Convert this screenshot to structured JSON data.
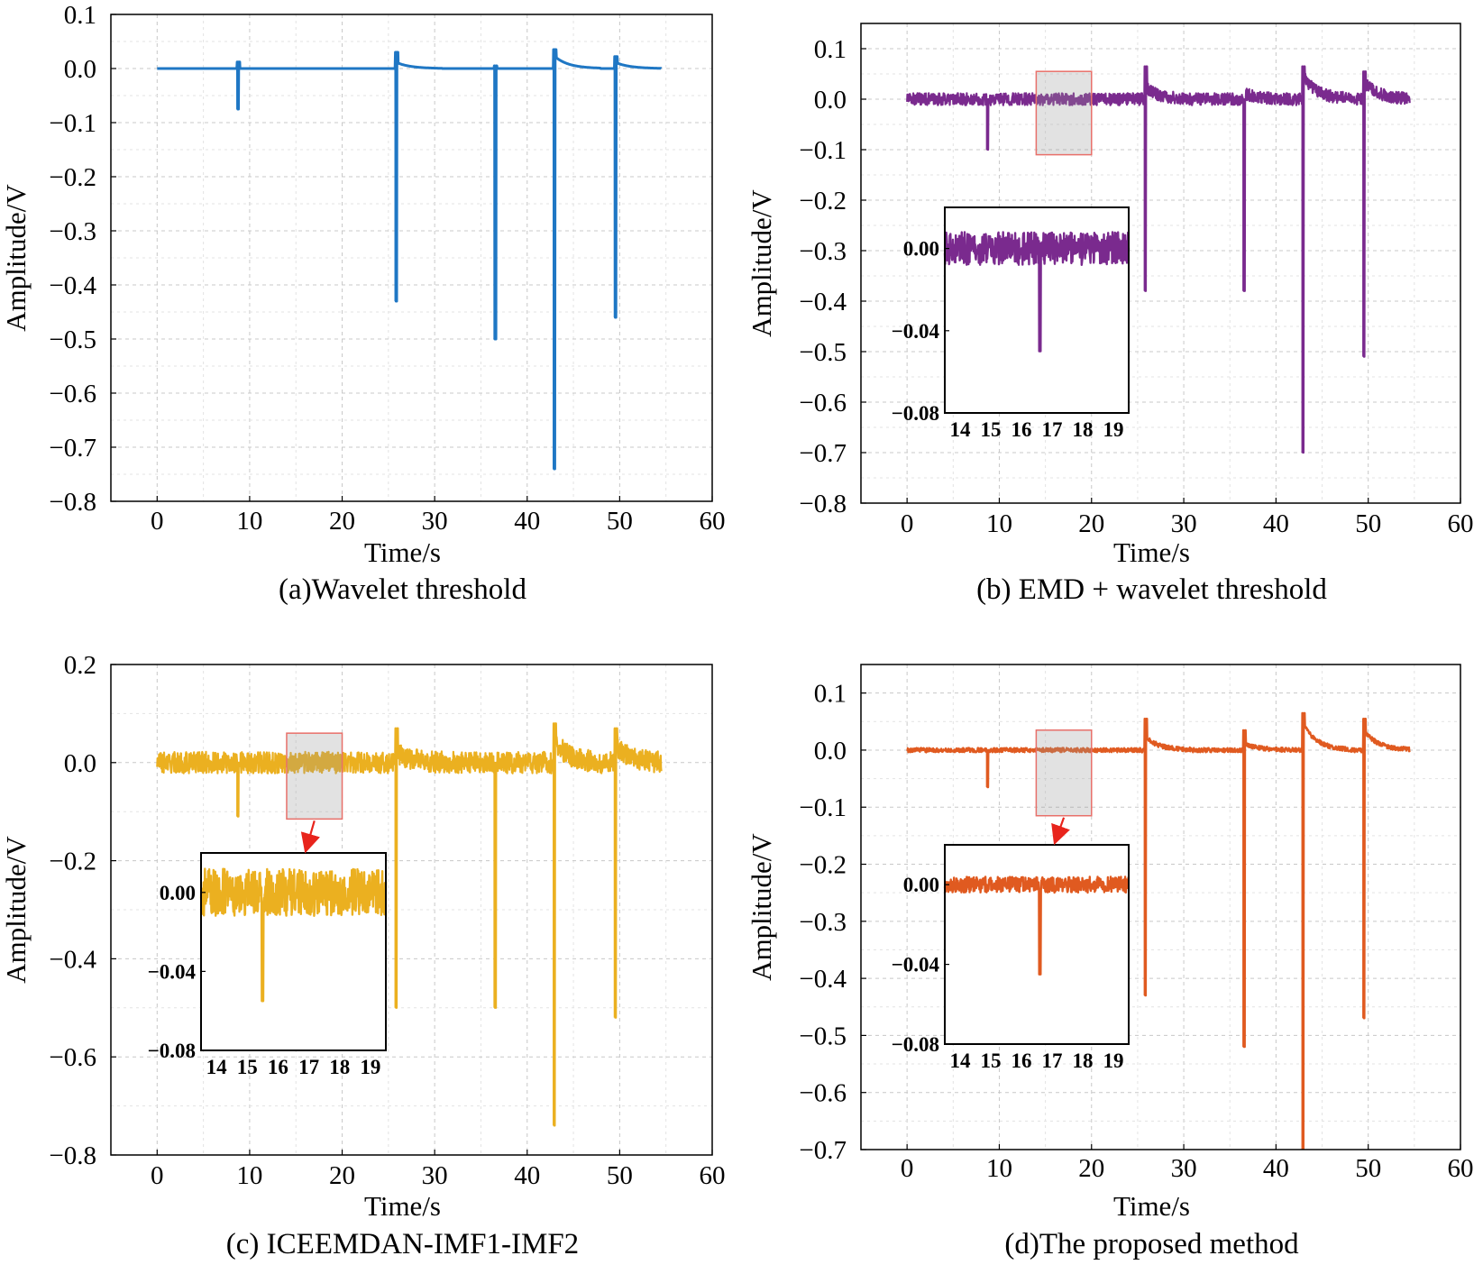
{
  "figure": {
    "panels_count": 4,
    "shared": {
      "xlabel": "Time/s",
      "ylabel": "Amplitude/V"
    }
  },
  "chart_data": [
    {
      "id": "a",
      "type": "line",
      "caption": "(a)Wavelet threshold",
      "xlabel": "Time/s",
      "ylabel": "Amplitude/V",
      "xlim": [
        -5,
        60
      ],
      "ylim": [
        -0.8,
        0.1
      ],
      "xticks": [
        0,
        10,
        20,
        30,
        40,
        50,
        60
      ],
      "xtick_labels": [
        "0",
        "10",
        "20",
        "30",
        "40",
        "50",
        "60"
      ],
      "yticks": [
        0.1,
        0.0,
        -0.1,
        -0.2,
        -0.3,
        -0.4,
        -0.5,
        -0.6,
        -0.7,
        -0.8
      ],
      "ytick_labels": [
        "0.1",
        "0.0",
        "−0.1",
        "−0.2",
        "−0.3",
        "−0.4",
        "−0.5",
        "−0.6",
        "−0.7",
        "−0.8"
      ],
      "grid": true,
      "color": "#1f77c4",
      "signal": {
        "t_start": 0,
        "t_end": 54.5,
        "baseline": 0.0,
        "noise": 0.0,
        "spikes": [
          {
            "t": 8.7,
            "min": -0.075,
            "max": 0.012,
            "recovery": 0.0
          },
          {
            "t": 25.8,
            "min": -0.43,
            "max": 0.03,
            "recovery": 0.01
          },
          {
            "t": 36.5,
            "min": -0.5,
            "max": 0.005,
            "recovery": 0.0
          },
          {
            "t": 42.9,
            "min": -0.74,
            "max": 0.035,
            "recovery": 0.02
          },
          {
            "t": 49.5,
            "min": -0.46,
            "max": 0.022,
            "recovery": 0.01
          }
        ]
      }
    },
    {
      "id": "b",
      "type": "line",
      "caption": "(b) EMD + wavelet threshold",
      "xlabel": "Time/s",
      "ylabel": "Amplitude/V",
      "xlim": [
        -5,
        60
      ],
      "ylim": [
        -0.8,
        0.15
      ],
      "xticks": [
        0,
        10,
        20,
        30,
        40,
        50,
        60
      ],
      "xtick_labels": [
        "0",
        "10",
        "20",
        "30",
        "40",
        "50",
        "60"
      ],
      "yticks": [
        0.1,
        0.0,
        -0.1,
        -0.2,
        -0.3,
        -0.4,
        -0.5,
        -0.6,
        -0.7,
        -0.8
      ],
      "ytick_labels": [
        "0.1",
        "0.0",
        "−0.1",
        "−0.2",
        "−0.3",
        "−0.4",
        "−0.5",
        "−0.6",
        "−0.7",
        "−0.8"
      ],
      "grid": true,
      "color": "#7a2a8e",
      "signal": {
        "t_start": 0,
        "t_end": 54.5,
        "baseline": 0.0,
        "noise": 0.012,
        "spikes": [
          {
            "t": 8.7,
            "min": -0.1,
            "max": 0.0,
            "recovery": 0.0
          },
          {
            "t": 25.8,
            "min": -0.38,
            "max": 0.065,
            "recovery": 0.02
          },
          {
            "t": 36.5,
            "min": -0.38,
            "max": 0.0,
            "recovery": 0.01
          },
          {
            "t": 42.9,
            "min": -0.7,
            "max": 0.065,
            "recovery": 0.04
          },
          {
            "t": 49.5,
            "min": -0.51,
            "max": 0.055,
            "recovery": 0.03
          }
        ]
      },
      "zoom_box": {
        "x_range": [
          14,
          20
        ],
        "y_range": [
          -0.11,
          0.055
        ]
      },
      "inset": {
        "xlim": [
          13.5,
          19.5
        ],
        "ylim": [
          -0.08,
          0.02
        ],
        "xticks": [
          14,
          15,
          16,
          17,
          18,
          19
        ],
        "xtick_labels": [
          "14",
          "15",
          "16",
          "17",
          "18",
          "19"
        ],
        "yticks": [
          0.0,
          -0.04,
          -0.08
        ],
        "ytick_labels": [
          "0.00",
          "−0.04",
          "−0.08"
        ],
        "noise": 0.008,
        "spike": {
          "t": 16.6,
          "min": -0.05
        },
        "arrow": false
      }
    },
    {
      "id": "c",
      "type": "line",
      "caption": "(c) ICEEMDAN-IMF1-IMF2",
      "xlabel": "Time/s",
      "ylabel": "Amplitude/V",
      "xlim": [
        -5,
        60
      ],
      "ylim": [
        -0.8,
        0.2
      ],
      "xticks": [
        0,
        10,
        20,
        30,
        40,
        50,
        60
      ],
      "xtick_labels": [
        "0",
        "10",
        "20",
        "30",
        "40",
        "50",
        "60"
      ],
      "yticks": [
        0.2,
        0.0,
        -0.2,
        -0.4,
        -0.6,
        -0.8
      ],
      "ytick_labels": [
        "0.2",
        "0.0",
        "−0.2",
        "−0.4",
        "−0.6",
        "−0.8"
      ],
      "grid": true,
      "color": "#ebb020",
      "signal": {
        "t_start": 0,
        "t_end": 54.5,
        "baseline": 0.0,
        "noise": 0.022,
        "spikes": [
          {
            "t": 8.7,
            "min": -0.11,
            "max": 0.0,
            "recovery": 0.0
          },
          {
            "t": 25.8,
            "min": -0.5,
            "max": 0.07,
            "recovery": 0.02
          },
          {
            "t": 36.5,
            "min": -0.5,
            "max": 0.0,
            "recovery": 0.0
          },
          {
            "t": 42.9,
            "min": -0.74,
            "max": 0.08,
            "recovery": 0.04
          },
          {
            "t": 49.5,
            "min": -0.52,
            "max": 0.07,
            "recovery": 0.03
          }
        ]
      },
      "zoom_box": {
        "x_range": [
          14,
          20
        ],
        "y_range": [
          -0.115,
          0.06
        ]
      },
      "inset": {
        "xlim": [
          13.5,
          19.5
        ],
        "ylim": [
          -0.08,
          0.02
        ],
        "xticks": [
          14,
          15,
          16,
          17,
          18,
          19
        ],
        "xtick_labels": [
          "14",
          "15",
          "16",
          "17",
          "18",
          "19"
        ],
        "yticks": [
          0.0,
          -0.04,
          -0.08
        ],
        "ytick_labels": [
          "0.00",
          "−0.04",
          "−0.08"
        ],
        "noise": 0.012,
        "spike": {
          "t": 15.5,
          "min": -0.055
        },
        "arrow": true
      }
    },
    {
      "id": "d",
      "type": "line",
      "caption": "(d)The proposed method",
      "xlabel": "Time/s",
      "ylabel": "Amplitude/V",
      "xlim": [
        -5,
        60
      ],
      "ylim": [
        -0.7,
        0.15
      ],
      "xticks": [
        0,
        10,
        20,
        30,
        40,
        50,
        60
      ],
      "xtick_labels": [
        "0",
        "10",
        "20",
        "30",
        "40",
        "50",
        "60"
      ],
      "yticks": [
        0.1,
        0.0,
        -0.1,
        -0.2,
        -0.3,
        -0.4,
        -0.5,
        -0.6,
        -0.7
      ],
      "ytick_labels": [
        "0.1",
        "0.0",
        "−0.1",
        "−0.2",
        "−0.3",
        "−0.4",
        "−0.5",
        "−0.6",
        "−0.7"
      ],
      "grid": true,
      "color": "#e05a20",
      "signal": {
        "t_start": 0,
        "t_end": 54.5,
        "baseline": 0.0,
        "noise": 0.004,
        "spikes": [
          {
            "t": 8.7,
            "min": -0.065,
            "max": 0.0,
            "recovery": 0.0
          },
          {
            "t": 25.8,
            "min": -0.43,
            "max": 0.055,
            "recovery": 0.02
          },
          {
            "t": 36.5,
            "min": -0.52,
            "max": 0.035,
            "recovery": 0.01
          },
          {
            "t": 42.9,
            "min": -0.7,
            "max": 0.065,
            "recovery": 0.04
          },
          {
            "t": 49.5,
            "min": -0.47,
            "max": 0.055,
            "recovery": 0.03
          }
        ]
      },
      "zoom_box": {
        "x_range": [
          14,
          20
        ],
        "y_range": [
          -0.115,
          0.035
        ]
      },
      "inset": {
        "xlim": [
          13.5,
          19.5
        ],
        "ylim": [
          -0.08,
          0.02
        ],
        "xticks": [
          14,
          15,
          16,
          17,
          18,
          19
        ],
        "xtick_labels": [
          "14",
          "15",
          "16",
          "17",
          "18",
          "19"
        ],
        "yticks": [
          0.0,
          -0.04,
          -0.08
        ],
        "ytick_labels": [
          "0.00",
          "−0.04",
          "−0.08"
        ],
        "noise": 0.004,
        "spike": {
          "t": 16.6,
          "min": -0.045
        },
        "arrow": true
      }
    }
  ]
}
